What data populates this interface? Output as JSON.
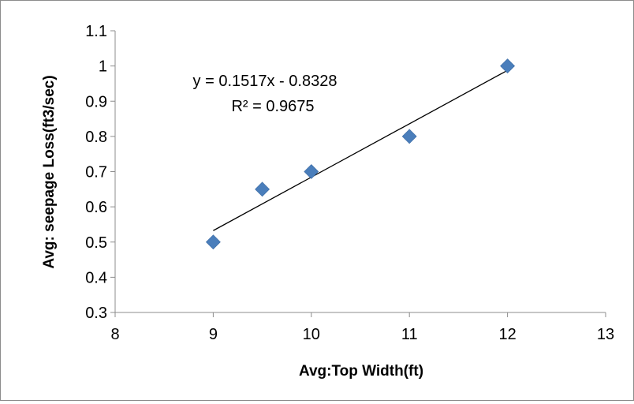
{
  "chart_data": {
    "type": "scatter",
    "title": "",
    "xlabel": "Avg:Top Width(ft)",
    "ylabel": "Avg: seepage Loss(ft3/sec)",
    "xlim": [
      8,
      13
    ],
    "ylim": [
      0.3,
      1.1
    ],
    "x_ticks": [
      8,
      9,
      10,
      11,
      12,
      13
    ],
    "y_ticks": [
      0.3,
      0.4,
      0.5,
      0.6,
      0.7,
      0.8,
      0.9,
      1,
      1.1
    ],
    "x": [
      9,
      9.5,
      10,
      11,
      12
    ],
    "y": [
      0.5,
      0.65,
      0.7,
      0.8,
      1.0
    ],
    "marker": "diamond",
    "marker_color": "#4a7ebb",
    "trendline": {
      "type": "linear",
      "slope": 0.1517,
      "intercept": -0.8328,
      "x_range": [
        9,
        12
      ],
      "color": "#000000",
      "equation_label": "y = 0.1517x - 0.8328",
      "r2_label": "R² = 0.9675"
    },
    "grid": false,
    "legend": "none"
  }
}
